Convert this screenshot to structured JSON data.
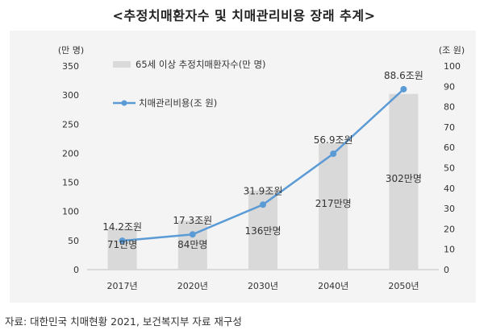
{
  "title": "<추정치매환자수 및 치매관리비용 장래 추계>",
  "source": "자료: 대한민국 치매현황 2021, 보건복지부 자료 재구성",
  "chart_data": {
    "type": "bar+line",
    "categories": [
      "2017년",
      "2020년",
      "2030년",
      "2040년",
      "2050년"
    ],
    "left_axis": {
      "unit_label": "(만 명)",
      "min": 0,
      "max": 350,
      "ticks": [
        0,
        50,
        100,
        150,
        200,
        250,
        300,
        350
      ]
    },
    "right_axis": {
      "unit_label": "(조 원)",
      "min": 0,
      "max": 100,
      "ticks": [
        0,
        10,
        20,
        30,
        40,
        50,
        60,
        70,
        80,
        90,
        100
      ]
    },
    "bar_series": {
      "name": "65세 이상 추정치매환자수(만 명)",
      "values": [
        71,
        84,
        136,
        217,
        302
      ],
      "labels": [
        "71만명",
        "84만명",
        "136만명",
        "217만명",
        "302만명"
      ],
      "color": "#d9d9d9"
    },
    "line_series": {
      "name": "치매관리비용(조 원)",
      "values": [
        14.2,
        17.3,
        31.9,
        56.9,
        88.6
      ],
      "labels": [
        "14.2조원",
        "17.3조원",
        "31.9조원",
        "56.9조원",
        "88.6조원"
      ],
      "color": "#5b9bd5"
    },
    "legend": "top-left",
    "grid": false
  }
}
